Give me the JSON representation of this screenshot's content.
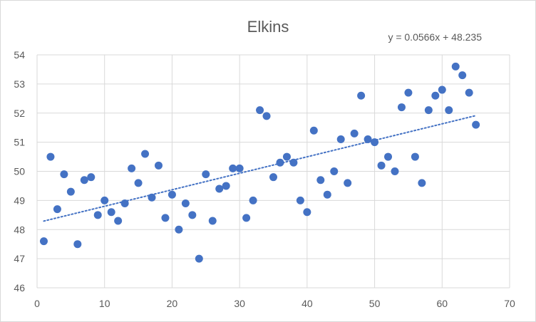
{
  "chart_data": {
    "type": "scatter",
    "title": "Elkins",
    "xlabel": "",
    "ylabel": "",
    "xlim": [
      0,
      70
    ],
    "ylim": [
      46,
      54
    ],
    "x_ticks": [
      0,
      10,
      20,
      30,
      40,
      50,
      60,
      70
    ],
    "y_ticks": [
      46,
      47,
      48,
      49,
      50,
      51,
      52,
      53,
      54
    ],
    "grid": true,
    "legend": "none",
    "point_color": "#4472c4",
    "trendline": {
      "type": "linear",
      "equation": "y = 0.0566x + 48.235",
      "slope": 0.0566,
      "intercept": 48.235,
      "x_range": [
        1,
        65
      ],
      "style": "dotted",
      "color": "#4472c4"
    },
    "series": [
      {
        "x": [
          1,
          2,
          3,
          4,
          5,
          6,
          7,
          8,
          9,
          10,
          11,
          12,
          13,
          14,
          15,
          16,
          17,
          18,
          19,
          20,
          21,
          22,
          23,
          24,
          25,
          26,
          27,
          28,
          29,
          30,
          31,
          32,
          33,
          34,
          35,
          36,
          37,
          38,
          39,
          40,
          41,
          42,
          43,
          44,
          45,
          46,
          47,
          48,
          49,
          50,
          51,
          52,
          53,
          54,
          55,
          56,
          57,
          58,
          59,
          60,
          61,
          62,
          63,
          64,
          65
        ],
        "y": [
          47.6,
          50.5,
          48.7,
          49.9,
          49.3,
          47.5,
          49.7,
          49.8,
          48.5,
          49.0,
          48.6,
          48.3,
          48.9,
          50.1,
          49.6,
          50.6,
          49.1,
          50.2,
          48.4,
          49.2,
          48.0,
          48.9,
          48.5,
          47.0,
          49.9,
          48.3,
          49.4,
          49.5,
          50.1,
          50.1,
          48.4,
          49.0,
          52.1,
          51.9,
          49.8,
          50.3,
          50.5,
          50.3,
          49.0,
          48.6,
          51.4,
          49.7,
          49.2,
          50.0,
          51.1,
          49.6,
          51.3,
          52.6,
          51.1,
          51.0,
          50.2,
          50.5,
          50.0,
          52.2,
          52.7,
          50.5,
          49.6,
          52.1,
          52.6,
          52.8,
          52.1,
          53.6,
          53.3,
          52.7,
          51.6
        ]
      }
    ]
  }
}
